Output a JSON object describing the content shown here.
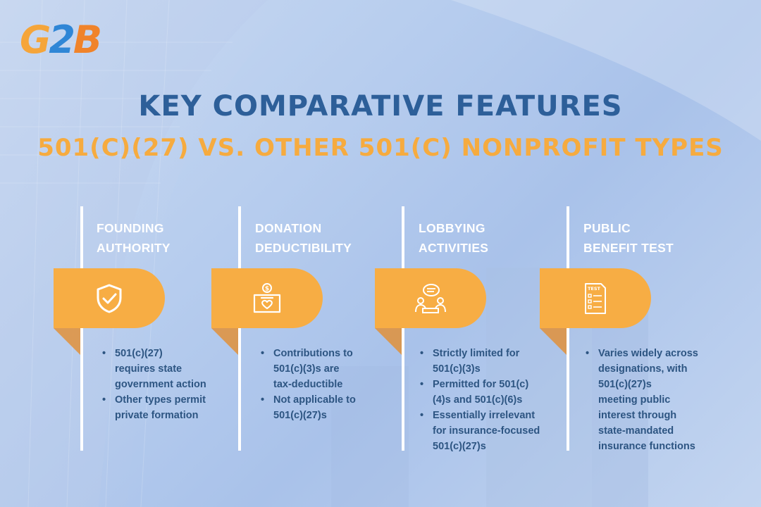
{
  "logo": {
    "g": "G",
    "two": "2",
    "b": "B"
  },
  "title": "KEY COMPARATIVE FEATURES",
  "subtitle": "501(C)(27) VS. OTHER 501(C) NONPROFIT TYPES",
  "colors": {
    "accent_orange": "#f7ad44",
    "title_blue": "#2d5f99",
    "text_blue": "#2d5582"
  },
  "columns": [
    {
      "title_line1": "FOUNDING",
      "title_line2": "AUTHORITY",
      "icon": "shield-check-icon",
      "bullets": [
        [
          "501(c)(27)",
          "requires state",
          "government action"
        ],
        [
          "Other types permit",
          "private formation"
        ]
      ]
    },
    {
      "title_line1": "DONATION",
      "title_line2": "DEDUCTIBILITY",
      "icon": "donation-box-icon",
      "bullets": [
        [
          "Contributions to",
          "501(c)(3)s are",
          "tax-deductible"
        ],
        [
          "Not applicable to",
          "501(c)(27)s"
        ]
      ]
    },
    {
      "title_line1": "LOBBYING",
      "title_line2": "ACTIVITIES",
      "icon": "meeting-discussion-icon",
      "bullets": [
        [
          "Strictly limited for",
          "501(c)(3)s"
        ],
        [
          "Permitted for 501(c)",
          "(4)s and 501(c)(6)s"
        ],
        [
          "Essentially irrelevant",
          "for insurance-focused",
          "501(c)(27)s"
        ]
      ]
    },
    {
      "title_line1": "PUBLIC",
      "title_line2": "BENEFIT TEST",
      "icon": "test-checklist-icon",
      "icon_text": "TEST",
      "bullets": [
        [
          "Varies widely across",
          "designations, with",
          "501(c)(27)s",
          "meeting public",
          "interest through",
          "state-mandated",
          "insurance functions"
        ]
      ]
    }
  ]
}
